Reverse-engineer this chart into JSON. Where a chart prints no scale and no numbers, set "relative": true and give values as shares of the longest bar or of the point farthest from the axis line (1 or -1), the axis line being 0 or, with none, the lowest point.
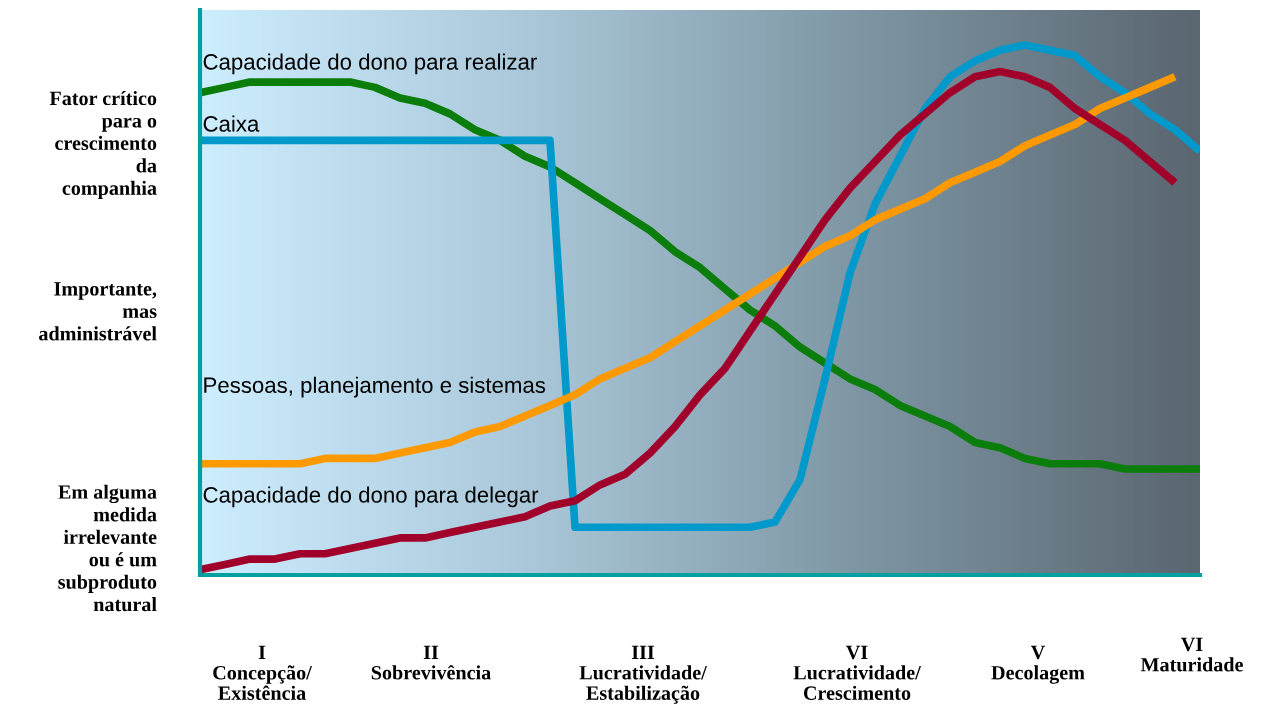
{
  "chart_data": {
    "type": "line",
    "relative": true,
    "grid": false,
    "legend": false,
    "categories": [
      null,
      null,
      null,
      null,
      null,
      null,
      null,
      null,
      null,
      null,
      null,
      null,
      null,
      null,
      null,
      null,
      null,
      null,
      null,
      null,
      null,
      null,
      null,
      null,
      null,
      null,
      null,
      null,
      null,
      null,
      null,
      null,
      null,
      null,
      null,
      null,
      null,
      null,
      null,
      null,
      null
    ],
    "annotations": [
      "Fator crítico\npara o\ncrescimento\nda\ncompanhia",
      "Importante,\nmas\nadministrável",
      "Em alguma\nmedida\nirrelevante\nou é um\nsubproduto\nnatural",
      "I\nConcepção/\nExistência",
      "II\nSobrevivência",
      "III\nLucratividade/\nEstabilização",
      "VI\nLucratividade/\nCrescimento",
      "V\nDecolagem",
      "VI\nMaturidade"
    ],
    "series": [
      {
        "name": "Capacidade do dono para realizar",
        "color": "#0a7d0a",
        "values": [
          0.91,
          0.92,
          0.93,
          0.93,
          0.93,
          0.93,
          0.93,
          0.92,
          0.9,
          0.89,
          0.87,
          0.84,
          0.82,
          0.79,
          0.77,
          0.74,
          0.71,
          0.68,
          0.65,
          0.61,
          0.58,
          0.54,
          0.5,
          0.47,
          0.43,
          0.4,
          0.37,
          0.35,
          0.32,
          0.3,
          0.28,
          0.25,
          0.24,
          0.22,
          0.21,
          0.21,
          0.21,
          0.2,
          0.2,
          0.2,
          0.2
        ]
      },
      {
        "name": "Caixa",
        "color": "#0099cc",
        "values": [
          0.82,
          0.82,
          0.82,
          0.82,
          0.82,
          0.82,
          0.82,
          0.82,
          0.82,
          0.82,
          0.82,
          0.82,
          0.82,
          0.82,
          0.82,
          0.09,
          0.09,
          0.09,
          0.09,
          0.09,
          0.09,
          0.09,
          0.09,
          0.1,
          0.18,
          0.37,
          0.57,
          0.7,
          0.79,
          0.88,
          0.94,
          0.97,
          0.99,
          1.0,
          0.99,
          0.98,
          0.94,
          0.91,
          0.87,
          0.84,
          0.8
        ]
      },
      {
        "name": "Pessoas, planejamento e sistemas",
        "color": "#ff9900",
        "values": [
          0.21,
          0.21,
          0.21,
          0.21,
          0.21,
          0.22,
          0.22,
          0.22,
          0.23,
          0.24,
          0.25,
          0.27,
          0.28,
          0.3,
          0.32,
          0.34,
          0.37,
          0.39,
          0.41,
          0.44,
          0.47,
          0.5,
          0.53,
          0.56,
          0.59,
          0.62,
          0.64,
          0.67,
          0.69,
          0.71,
          0.74,
          0.76,
          0.78,
          0.81,
          0.83,
          0.85,
          0.88,
          0.9,
          0.92,
          0.94,
          null
        ]
      },
      {
        "name": "Capacidade do dono para delegar",
        "color": "#a0002a",
        "values": [
          0.01,
          0.02,
          0.03,
          0.03,
          0.04,
          0.04,
          0.05,
          0.06,
          0.07,
          0.07,
          0.08,
          0.09,
          0.1,
          0.11,
          0.13,
          0.14,
          0.17,
          0.19,
          0.23,
          0.28,
          0.34,
          0.39,
          0.46,
          0.53,
          0.6,
          0.67,
          0.73,
          0.78,
          0.83,
          0.87,
          0.91,
          0.94,
          0.95,
          0.94,
          0.92,
          0.88,
          0.85,
          0.82,
          0.78,
          0.74,
          null
        ]
      }
    ]
  }
}
